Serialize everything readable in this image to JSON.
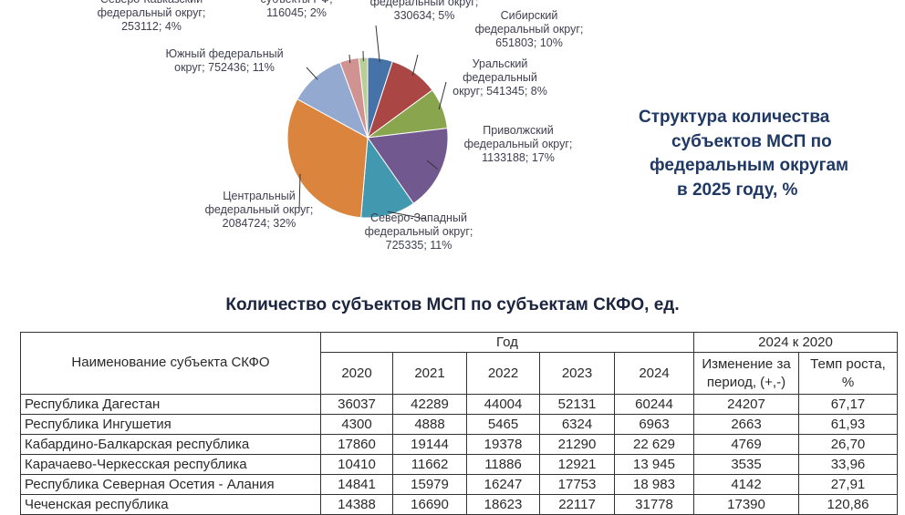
{
  "chart_data": {
    "type": "pie",
    "slices": [
      {
        "label_lines": [
          "федеральный округ;",
          "330634; 5%"
        ],
        "value": 330634,
        "percent": 5,
        "color": "#4572a7"
      },
      {
        "label_lines": [
          "Сибирский",
          "федеральный округ;",
          "651803; 10%"
        ],
        "value": 651803,
        "percent": 10,
        "color": "#aa4643"
      },
      {
        "label_lines": [
          "Уральский",
          "федеральный",
          "округ; 541345; 8%"
        ],
        "value": 541345,
        "percent": 8,
        "color": "#89a54e"
      },
      {
        "label_lines": [
          "Приволжский",
          "федеральный округ;",
          "1133188; 17%"
        ],
        "value": 1133188,
        "percent": 17,
        "color": "#71588f"
      },
      {
        "label_lines": [
          "Северо-Западный",
          "федеральный округ;",
          "725335; 11%"
        ],
        "value": 725335,
        "percent": 11,
        "color": "#4198af"
      },
      {
        "label_lines": [
          "Центральный",
          "федеральный округ;",
          "2084724; 32%"
        ],
        "value": 2084724,
        "percent": 32,
        "color": "#db843d"
      },
      {
        "label_lines": [
          "Южный федеральный",
          "округ; 752436; 11%"
        ],
        "value": 752436,
        "percent": 11,
        "color": "#93a9cf"
      },
      {
        "label_lines": [
          "Северо-Кавказский",
          "федеральный округ;",
          "253112; 4%"
        ],
        "value": 253112,
        "percent": 4,
        "color": "#d19392"
      },
      {
        "label_lines": [
          "субъекты РФ;",
          "116045; 2%"
        ],
        "value": 116045,
        "percent": 2,
        "color": "#b9cd96"
      }
    ]
  },
  "side_title": [
    "Структура количества",
    "субъектов МСП по",
    "федеральным округам",
    "в 2025 году, %"
  ],
  "table": {
    "title": "Количество субъектов МСП по субъектам СКФО, ед.",
    "name_header": "Наименование субъекта СКФО",
    "year_group": "Год",
    "compare_group": "2024 к 2020",
    "years": [
      "2020",
      "2021",
      "2022",
      "2023",
      "2024"
    ],
    "change_header": "Изменение за период, (+,-)",
    "rate_header": "Темп роста, %",
    "rows": [
      {
        "name": "Республика Дагестан",
        "values": [
          "36037",
          "42289",
          "44004",
          "52131",
          "60244"
        ],
        "change": "24207",
        "rate": "67,17"
      },
      {
        "name": "Республика Ингушетия",
        "values": [
          "4300",
          "4888",
          "5465",
          "6324",
          "6963"
        ],
        "change": "2663",
        "rate": "61,93"
      },
      {
        "name": "Кабардино-Балкарская республика",
        "values": [
          "17860",
          "19144",
          "19378",
          "21290",
          "22 629"
        ],
        "change": "4769",
        "rate": "26,70"
      },
      {
        "name": "Карачаево-Черкесская республика",
        "values": [
          "10410",
          "11662",
          "11886",
          "12921",
          "13 945"
        ],
        "change": "3535",
        "rate": "33,96"
      },
      {
        "name": "Республика Северная Осетия - Алания",
        "values": [
          "14841",
          "15979",
          "16247",
          "17753",
          "18 983"
        ],
        "change": "4142",
        "rate": "27,91"
      },
      {
        "name": "Чеченская республика",
        "values": [
          "14388",
          "16690",
          "18623",
          "22117",
          "31778"
        ],
        "change": "17390",
        "rate": "120,86"
      }
    ]
  }
}
